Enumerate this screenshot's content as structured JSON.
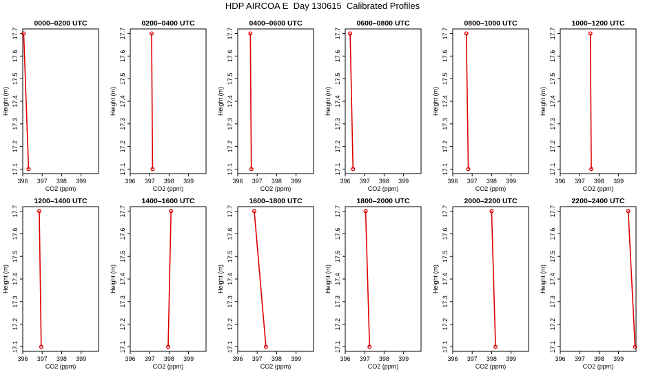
{
  "title": "HDP AIRCOA E  Day 130615  Calibrated Profiles",
  "chart_data": {
    "type": "line",
    "xlabel": "CO2 (ppm)",
    "ylabel": "Height (m)",
    "xlim": [
      396,
      399.9
    ],
    "ylim": [
      17.08,
      17.72
    ],
    "xticks": [
      396,
      397,
      398,
      399
    ],
    "yticks": [
      17.1,
      17.2,
      17.3,
      17.4,
      17.5,
      17.6,
      17.7
    ],
    "line_color": "#dd0000",
    "marker_color": "#dd0000",
    "panels": [
      {
        "title": "0000–0200 UTC",
        "co2": [
          396.05,
          396.3
        ],
        "height": [
          17.7,
          17.1
        ]
      },
      {
        "title": "0200–0400 UTC",
        "co2": [
          397.1,
          397.15
        ],
        "height": [
          17.7,
          17.1
        ]
      },
      {
        "title": "0400–0600 UTC",
        "co2": [
          396.65,
          396.7
        ],
        "height": [
          17.7,
          17.1
        ]
      },
      {
        "title": "0600–0800 UTC",
        "co2": [
          396.25,
          396.4
        ],
        "height": [
          17.7,
          17.1
        ]
      },
      {
        "title": "0800–1000 UTC",
        "co2": [
          396.7,
          396.8
        ],
        "height": [
          17.7,
          17.1
        ]
      },
      {
        "title": "1000–1200 UTC",
        "co2": [
          397.55,
          397.6
        ],
        "height": [
          17.7,
          17.1
        ]
      },
      {
        "title": "1200–1400 UTC",
        "co2": [
          396.85,
          396.95
        ],
        "height": [
          17.7,
          17.1
        ]
      },
      {
        "title": "1400–1600 UTC",
        "co2": [
          398.1,
          397.95
        ],
        "height": [
          17.7,
          17.1
        ]
      },
      {
        "title": "1600–1800 UTC",
        "co2": [
          396.85,
          397.45
        ],
        "height": [
          17.7,
          17.1
        ]
      },
      {
        "title": "1800–2000 UTC",
        "co2": [
          397.05,
          397.25
        ],
        "height": [
          17.7,
          17.1
        ]
      },
      {
        "title": "2000–2200 UTC",
        "co2": [
          398.0,
          398.2
        ],
        "height": [
          17.7,
          17.1
        ]
      },
      {
        "title": "2200–2400 UTC",
        "co2": [
          399.5,
          399.85
        ],
        "height": [
          17.7,
          17.1
        ]
      }
    ]
  }
}
